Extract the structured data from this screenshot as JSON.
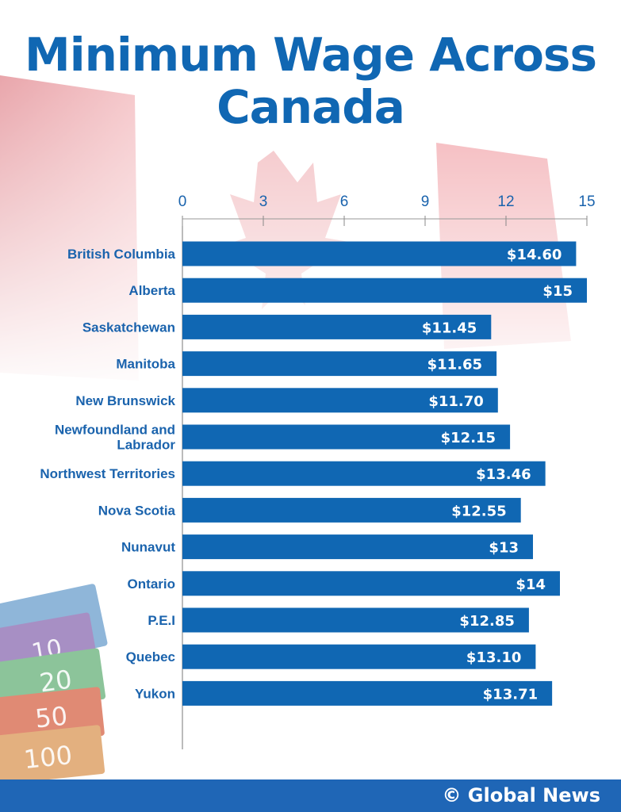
{
  "title": [
    "Minimum Wage Across",
    "Canada"
  ],
  "footer": {
    "copyright_symbol": "©",
    "brand": "Global News"
  },
  "colors": {
    "bar": "#1067b3",
    "title": "#1067b3",
    "footer": "#1f66b6",
    "label": "#1a63ad",
    "flag_red": "#e63946"
  },
  "chart_data": {
    "type": "bar",
    "orientation": "horizontal",
    "title": "Minimum Wage Across Canada",
    "xlabel": "",
    "ylabel": "",
    "xlim": [
      0,
      15
    ],
    "ticks": [
      0,
      3,
      6,
      9,
      12,
      15
    ],
    "categories": [
      "British Columbia",
      "Alberta",
      "Saskatchewan",
      "Manitoba",
      "New Brunswick",
      "Newfoundland and Labrador",
      "Northwest Territories",
      "Nova Scotia",
      "Nunavut",
      "Ontario",
      "P.E.I",
      "Quebec",
      "Yukon"
    ],
    "values": [
      14.6,
      15,
      11.45,
      11.65,
      11.7,
      12.15,
      13.46,
      12.55,
      13,
      14,
      12.85,
      13.1,
      13.71
    ],
    "data_labels": [
      "$14.60",
      "$15",
      "$11.45",
      "$11.65",
      "$11.70",
      "$12.15",
      "$13.46",
      "$12.55",
      "$13",
      "$14",
      "$12.85",
      "$13.10",
      "$13.71"
    ],
    "grid": false
  }
}
